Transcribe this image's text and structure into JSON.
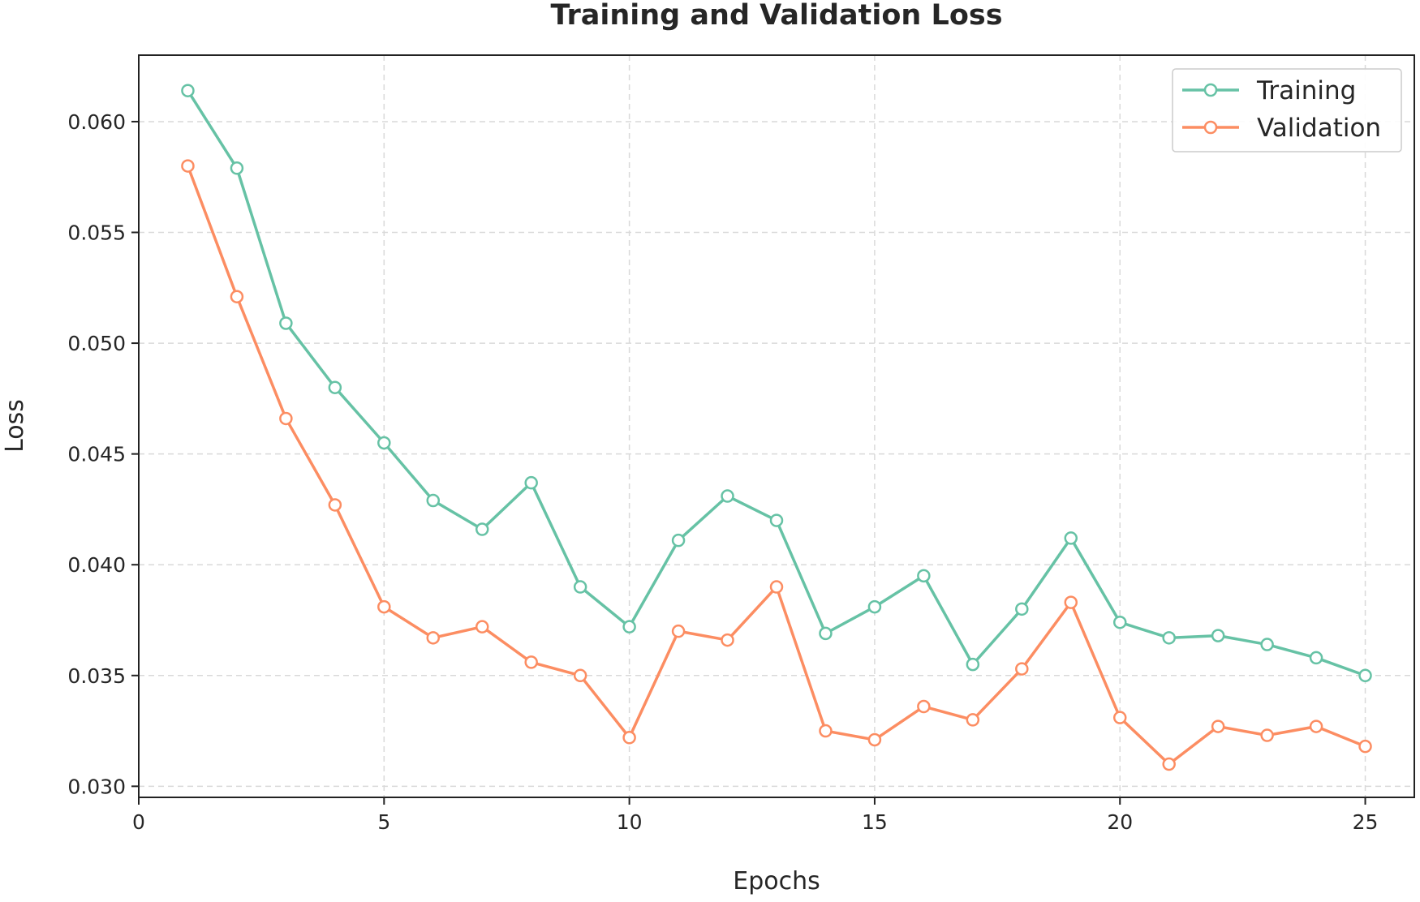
{
  "chart_data": {
    "type": "line",
    "title": "Training and Validation Loss",
    "xlabel": "Epochs",
    "ylabel": "Loss",
    "xlim": [
      0,
      26
    ],
    "ylim": [
      0.0295,
      0.063
    ],
    "x_ticks": [
      0,
      5,
      10,
      15,
      20,
      25
    ],
    "y_ticks": [
      0.03,
      0.035,
      0.04,
      0.045,
      0.05,
      0.055,
      0.06
    ],
    "x_tick_labels": [
      "0",
      "5",
      "10",
      "15",
      "20",
      "25"
    ],
    "y_tick_labels": [
      "0.030",
      "0.035",
      "0.040",
      "0.045",
      "0.050",
      "0.055",
      "0.060"
    ],
    "grid": true,
    "legend_position": "top-right",
    "x": [
      1,
      2,
      3,
      4,
      5,
      6,
      7,
      8,
      9,
      10,
      11,
      12,
      13,
      14,
      15,
      16,
      17,
      18,
      19,
      20,
      21,
      22,
      23,
      24,
      25
    ],
    "series": [
      {
        "name": "Training",
        "color": "#66c2a5",
        "values": [
          0.0614,
          0.0579,
          0.0509,
          0.048,
          0.0455,
          0.0429,
          0.0416,
          0.0437,
          0.039,
          0.0372,
          0.0411,
          0.0431,
          0.042,
          0.0369,
          0.0381,
          0.0395,
          0.0355,
          0.038,
          0.0412,
          0.0374,
          0.0367,
          0.0368,
          0.0364,
          0.0358,
          0.035
        ]
      },
      {
        "name": "Validation",
        "color": "#fc8d62",
        "values": [
          0.058,
          0.0521,
          0.0466,
          0.0427,
          0.0381,
          0.0367,
          0.0372,
          0.0356,
          0.035,
          0.0322,
          0.037,
          0.0366,
          0.039,
          0.0325,
          0.0321,
          0.0336,
          0.033,
          0.0353,
          0.0383,
          0.0331,
          0.031,
          0.0327,
          0.0323,
          0.0327,
          0.0318
        ]
      }
    ]
  }
}
